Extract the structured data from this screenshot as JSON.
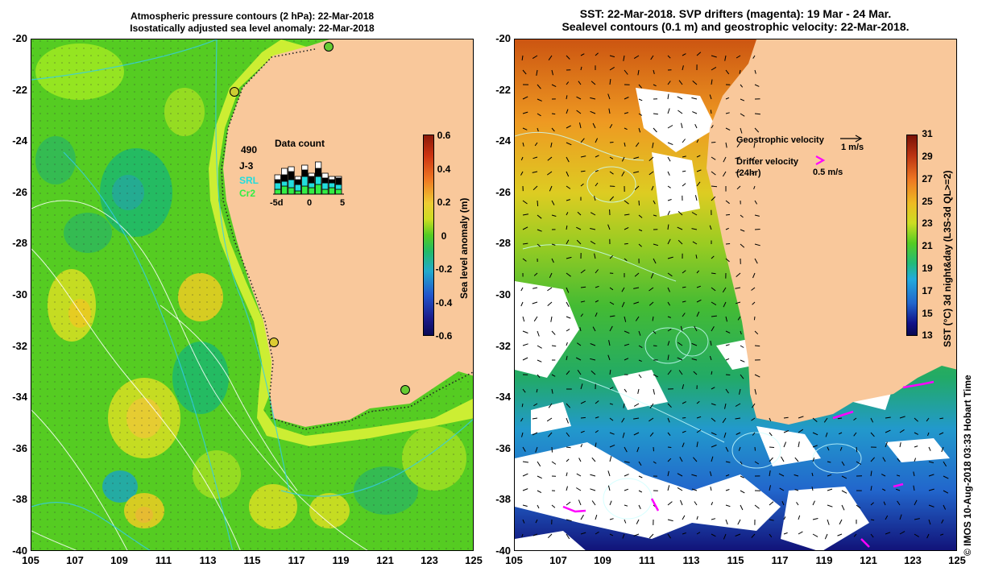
{
  "left": {
    "title_line1": "Atmospheric pressure contours (2 hPa): 22-Mar-2018",
    "title_line2": "Isostatically adjusted sea level anomaly: 22-Mar-2018",
    "colorbar": {
      "title": "Sea level anomaly (m)",
      "ticks": [
        "0.6",
        "0.4",
        "0.2",
        "0",
        "-0.2",
        "-0.4",
        "-0.6"
      ]
    },
    "data_count": {
      "title": "Data count",
      "labels": [
        "490",
        "J-3",
        "SRL",
        "Cr2"
      ],
      "label_colors": [
        "#000000",
        "#000000",
        "#22dddd",
        "#33ee44"
      ],
      "axis_ticks": [
        "-5d",
        "0",
        "5"
      ]
    }
  },
  "right": {
    "title_line1": "SST: 22-Mar-2018. SVP drifters (magenta): 19 Mar - 24 Mar.",
    "title_line2": "Sealevel contours (0.1 m) and geostrophic velocity: 22-Mar-2018.",
    "legend": {
      "geostrophic_label": "Geostrophic velocity",
      "geostrophic_scale": "1 m/s",
      "drifter_label": "Drifter velocity",
      "drifter_sub": "(24hr)",
      "drifter_scale": "0.5 m/s"
    },
    "colorbar": {
      "title": "SST (°C) 3d night&day (L3S-3d QL>=2)",
      "ticks": [
        "31",
        "29",
        "27",
        "25",
        "23",
        "21",
        "19",
        "17",
        "15",
        "13"
      ]
    }
  },
  "axes": {
    "y_ticks": [
      "-20",
      "-22",
      "-24",
      "-26",
      "-28",
      "-30",
      "-32",
      "-34",
      "-36",
      "-38",
      "-40"
    ],
    "x_ticks": [
      "105",
      "107",
      "109",
      "111",
      "113",
      "115",
      "117",
      "119",
      "121",
      "123",
      "125"
    ]
  },
  "footer": "© IMOS 10-Aug-2018 03:33 Hobart Time",
  "colors": {
    "land": "#f9c89b",
    "ocean_sla": "#55cc22",
    "drifter": "#ff00ff"
  }
}
